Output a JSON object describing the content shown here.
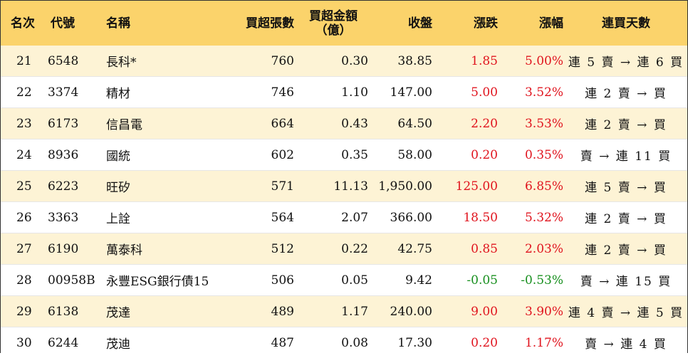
{
  "headers": {
    "rank": "名次",
    "code": "代號",
    "name": "名稱",
    "volume": "買超張數",
    "amount_line1": "買超金額",
    "amount_line2": "（億）",
    "close": "收盤",
    "change": "漲跌",
    "pct": "漲幅",
    "days": "連買天數"
  },
  "colors": {
    "header_bg": "#fbd36b",
    "stripe_bg": "#fdf3d5",
    "up": "#e0141e",
    "down": "#178f1e"
  },
  "rows": [
    {
      "rank": "21",
      "code": "6548",
      "name": "長科*",
      "volume": "760",
      "amount": "0.30",
      "close": "38.85",
      "change": "1.85",
      "pct": "5.00%",
      "days": "連 5 賣 → 連 6 買",
      "dir": "up"
    },
    {
      "rank": "22",
      "code": "3374",
      "name": "精材",
      "volume": "746",
      "amount": "1.10",
      "close": "147.00",
      "change": "5.00",
      "pct": "3.52%",
      "days": "連 2 賣 → 買",
      "dir": "up"
    },
    {
      "rank": "23",
      "code": "6173",
      "name": "信昌電",
      "volume": "664",
      "amount": "0.43",
      "close": "64.50",
      "change": "2.20",
      "pct": "3.53%",
      "days": "連 2 賣 → 買",
      "dir": "up"
    },
    {
      "rank": "24",
      "code": "8936",
      "name": "國統",
      "volume": "602",
      "amount": "0.35",
      "close": "58.00",
      "change": "0.20",
      "pct": "0.35%",
      "days": "賣 → 連 11 買",
      "dir": "up"
    },
    {
      "rank": "25",
      "code": "6223",
      "name": "旺矽",
      "volume": "571",
      "amount": "11.13",
      "close": "1,950.00",
      "change": "125.00",
      "pct": "6.85%",
      "days": "連 5 賣 → 買",
      "dir": "up"
    },
    {
      "rank": "26",
      "code": "3363",
      "name": "上詮",
      "volume": "564",
      "amount": "2.07",
      "close": "366.00",
      "change": "18.50",
      "pct": "5.32%",
      "days": "連 2 賣 → 買",
      "dir": "up"
    },
    {
      "rank": "27",
      "code": "6190",
      "name": "萬泰科",
      "volume": "512",
      "amount": "0.22",
      "close": "42.75",
      "change": "0.85",
      "pct": "2.03%",
      "days": "連 2 賣 → 買",
      "dir": "up"
    },
    {
      "rank": "28",
      "code": "00958B",
      "name": "永豐ESG銀行債15",
      "volume": "506",
      "amount": "0.05",
      "close": "9.42",
      "change": "-0.05",
      "pct": "-0.53%",
      "days": "賣 → 連 15 買",
      "dir": "down"
    },
    {
      "rank": "29",
      "code": "6138",
      "name": "茂達",
      "volume": "489",
      "amount": "1.17",
      "close": "240.00",
      "change": "9.00",
      "pct": "3.90%",
      "days": "連 4 賣 → 連 5 買",
      "dir": "up"
    },
    {
      "rank": "30",
      "code": "6244",
      "name": "茂迪",
      "volume": "487",
      "amount": "0.08",
      "close": "17.30",
      "change": "0.20",
      "pct": "1.17%",
      "days": "賣 → 連 4 買",
      "dir": "up"
    }
  ]
}
